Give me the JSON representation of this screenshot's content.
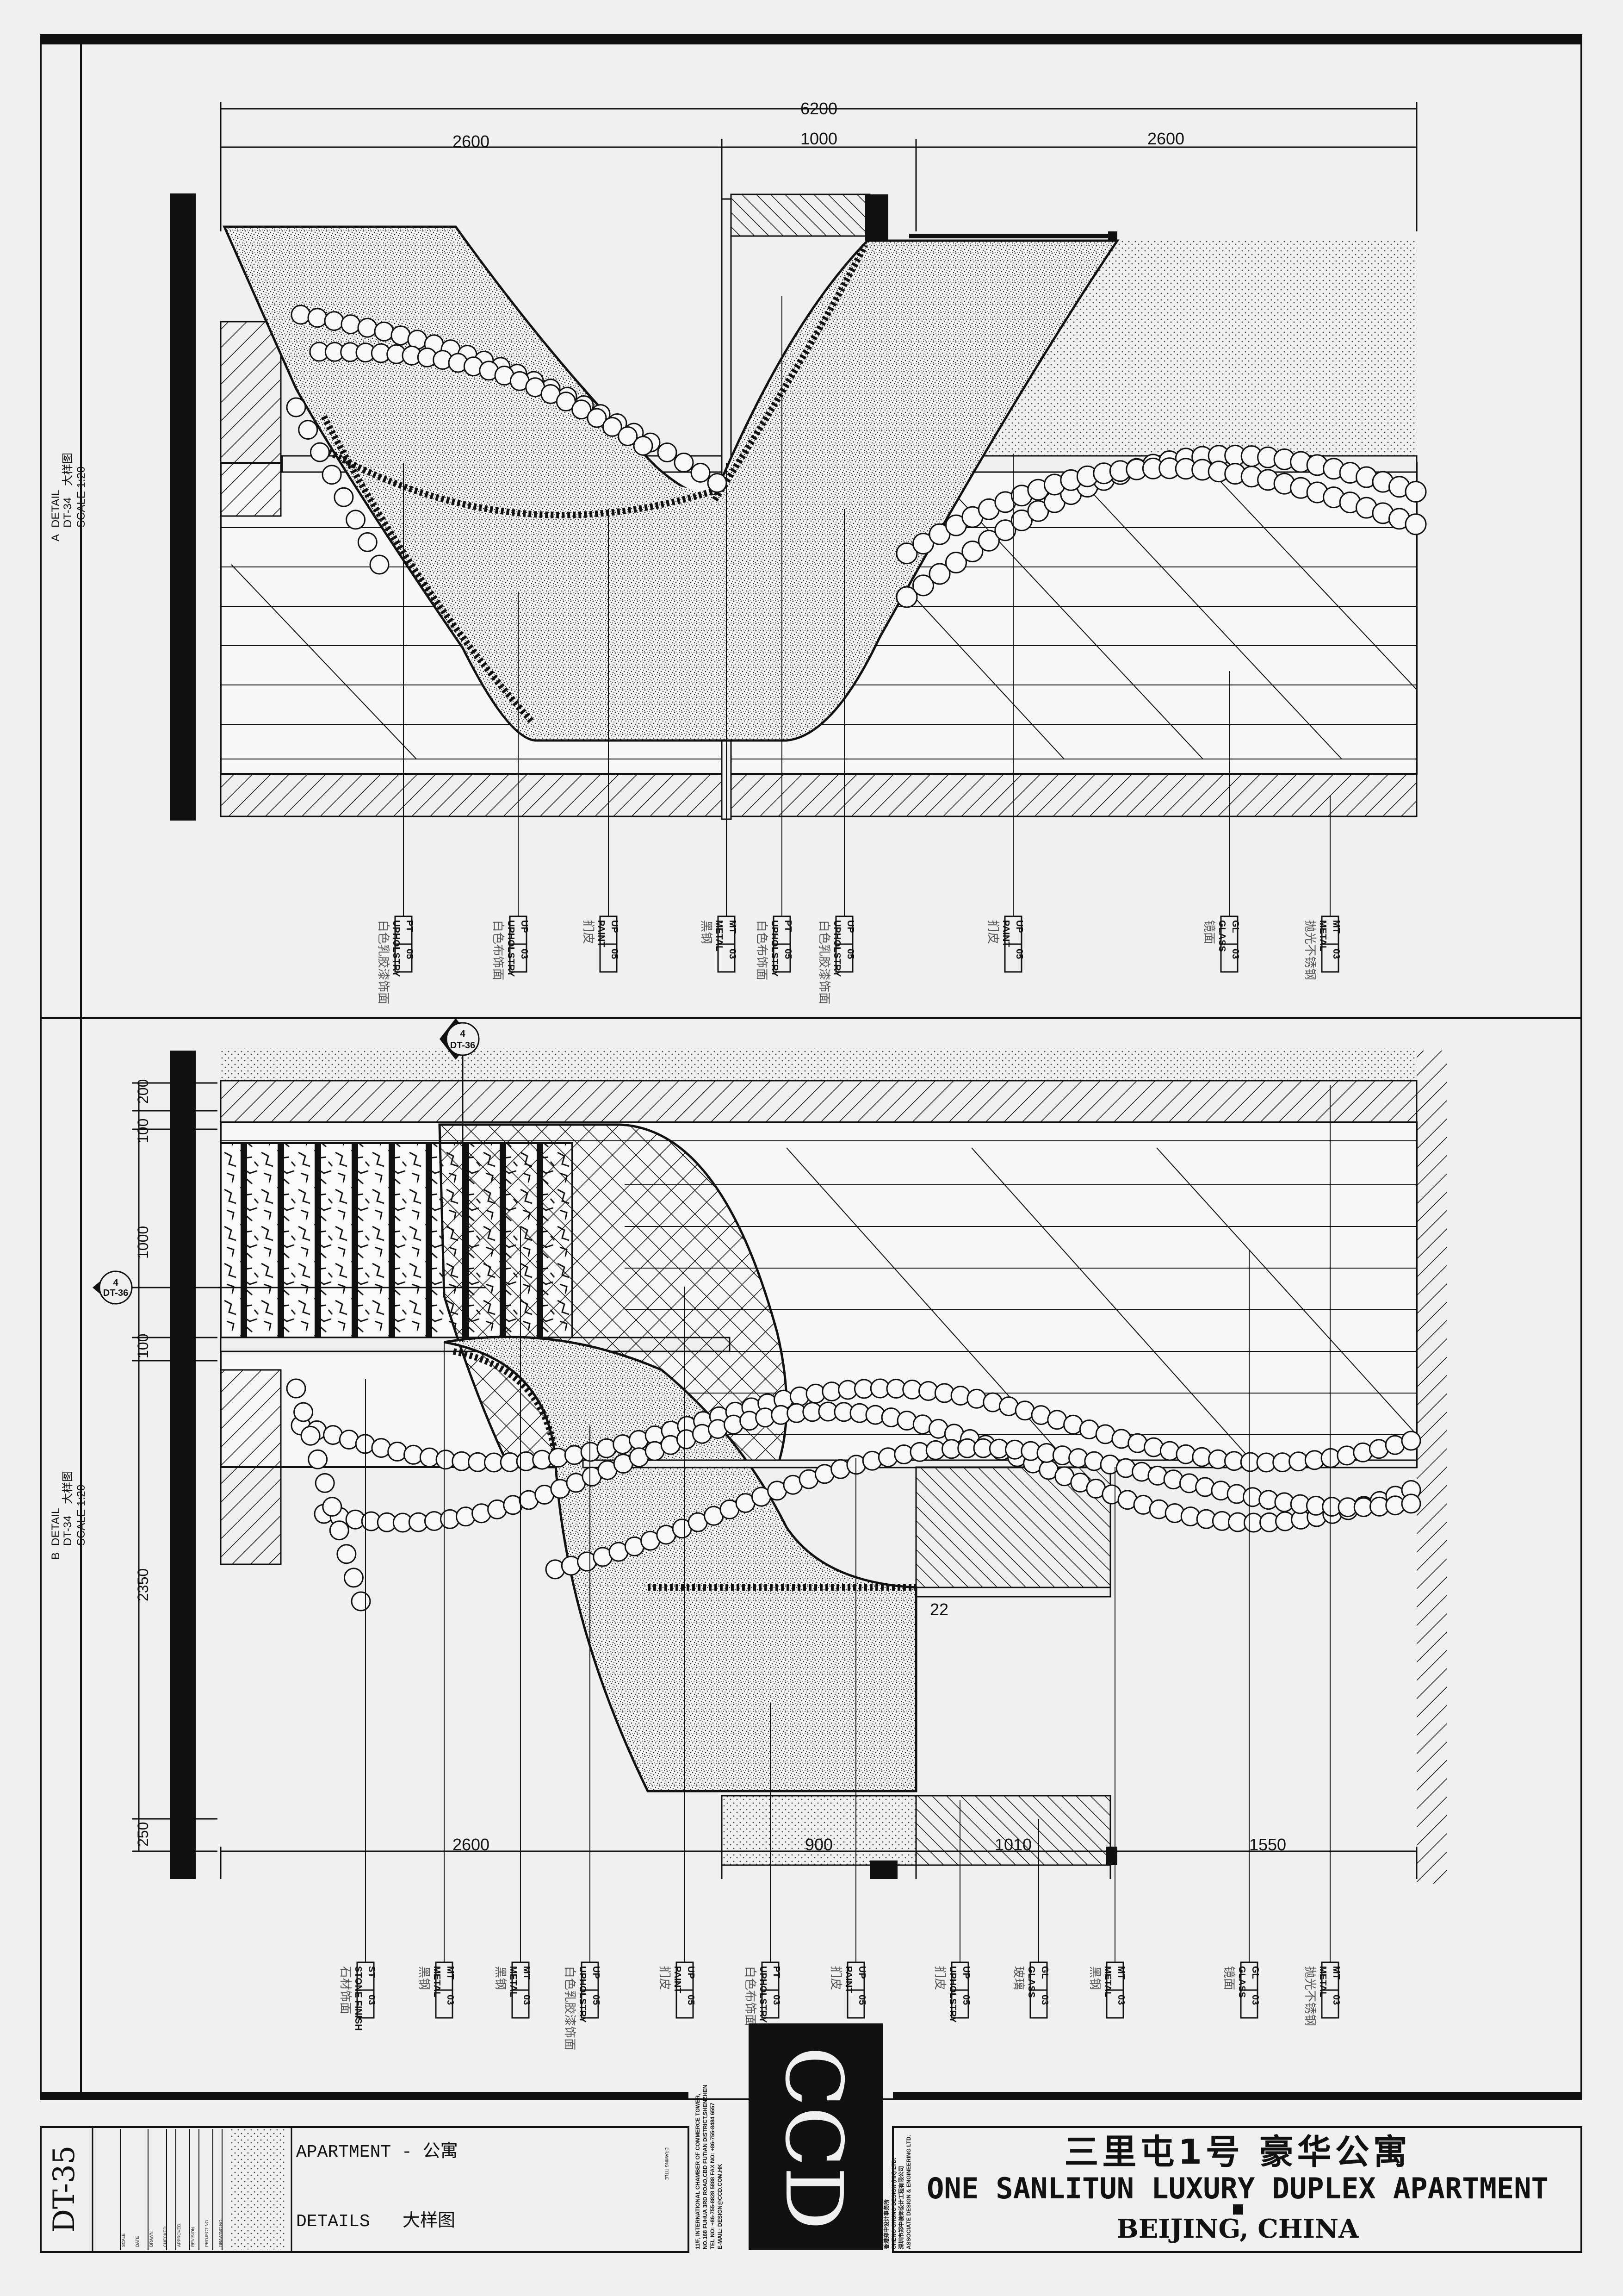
{
  "top_plan": {
    "dims_top": {
      "overall": "6200",
      "left": "2600",
      "mid": "1000",
      "right": "2600"
    },
    "side_label": {
      "ref": "A",
      "title": "DETAIL",
      "sheet": "DT-34",
      "cn": "大样图",
      "scale": "SCALE 1:20"
    },
    "tags": [
      {
        "code1": "PT",
        "code2": "05",
        "name": "UPHOLSTRY",
        "cn": "白色乳胶漆饰面"
      },
      {
        "code1": "UP",
        "code2": "03",
        "name": "UPHOLSTRY",
        "cn": "白色布饰面"
      },
      {
        "code1": "UP",
        "code2": "05",
        "name": "PAINT",
        "cn": "扪皮"
      },
      {
        "code1": "MT",
        "code2": "03",
        "name": "METAL",
        "cn": "黑钢"
      },
      {
        "code1": "PT",
        "code2": "05",
        "name": "UPHOLSTRY",
        "cn": "白色布饰面"
      },
      {
        "code1": "UP",
        "code2": "05",
        "name": "UPHOLSTRY",
        "cn": "白色乳胶漆饰面"
      },
      {
        "code1": "UP",
        "code2": "05",
        "name": "PAINT",
        "cn": "扪皮"
      },
      {
        "code1": "GL",
        "code2": "03",
        "name": "GLASS",
        "cn": "镜面"
      },
      {
        "code1": "MT",
        "code2": "03",
        "name": "METAL",
        "cn": "抛光不锈钢"
      }
    ]
  },
  "bottom_plan": {
    "dims_bottom": {
      "a": "2600",
      "b": "900",
      "c": "1010",
      "d": "1550"
    },
    "dims_left": {
      "d1": "200",
      "d2": "100",
      "d3": "1000",
      "d4": "100",
      "d5": "2350",
      "d6": "250"
    },
    "small_label": "22",
    "marker_top": {
      "num": "4",
      "sheet": "DT-36"
    },
    "marker_left": {
      "num": "4",
      "sheet": "DT-36"
    },
    "side_label": {
      "ref": "B",
      "title": "DETAIL",
      "sheet": "DT-34",
      "cn": "大样图",
      "scale": "SCALE 1:20"
    },
    "tags": [
      {
        "code1": "ST",
        "code2": "03",
        "name": "STONE FINISH",
        "cn": "石材饰面"
      },
      {
        "code1": "MT",
        "code2": "03",
        "name": "METAL",
        "cn": "黑钢"
      },
      {
        "code1": "MT",
        "code2": "03",
        "name": "METAL",
        "cn": "黑钢"
      },
      {
        "code1": "UP",
        "code2": "05",
        "name": "UPHOLSTRY",
        "cn": "白色乳胶漆饰面"
      },
      {
        "code1": "UP",
        "code2": "05",
        "name": "PAINT",
        "cn": "扪皮"
      },
      {
        "code1": "PT",
        "code2": "03",
        "name": "UPHOLSTRY",
        "cn": "白色布饰面"
      },
      {
        "code1": "UP",
        "code2": "05",
        "name": "PAINT",
        "cn": "扪皮"
      },
      {
        "code1": "UP",
        "code2": "05",
        "name": "UPHOLSTRY",
        "cn": "扪皮"
      },
      {
        "code1": "GL",
        "code2": "03",
        "name": "GLASS",
        "cn": "玻璃"
      },
      {
        "code1": "MT",
        "code2": "03",
        "name": "METAL",
        "cn": "黑钢"
      },
      {
        "code1": "GL",
        "code2": "03",
        "name": "GLASS",
        "cn": "镜面"
      },
      {
        "code1": "MT",
        "code2": "03",
        "name": "METAL",
        "cn": "抛光不锈钢"
      }
    ]
  },
  "title_block": {
    "sheet_no": "DT-35",
    "apartment": "APARTMENT - 公寓",
    "details": "DETAILS",
    "details_cn": "大样图",
    "drawing_title_label": "DRAWING TITLE",
    "logo": "CCD",
    "company_cn": "香港郑中设计事务所",
    "company_en": "CHENG CHUNG DESIGN (HK) LTD.",
    "company_cn2": "深圳市郑中装饰设计工程有限公司",
    "company_en2": "ASSOCIATE DESIGN & ENGINEERING LTD.",
    "address1": "11/F, INTERNATIONAL CHAMBER OF COMMERCE TOWER,",
    "address2": "NO.168 FUHUA 3RD ROAD,CBD FUTIAN DISTRICT,SHENZHEN",
    "phone": "TEL NO: +86-755-8828 5888  FAX NO: +86-755-8484 6557",
    "email": "E-MAIL: DESIGN@CCD.COM.HK",
    "project_cn": "三里屯1号  豪华公寓",
    "project_en": "ONE SANLITUN LUXURY DUPLEX APARTMENT",
    "city": "BEIJING, CHINA",
    "small_fields": [
      "SCALE",
      "DATE",
      "DRAWN",
      "CHECKED",
      "APPROVED",
      "REVISION",
      "PROJECT NO.",
      "DRAWING NO."
    ]
  }
}
